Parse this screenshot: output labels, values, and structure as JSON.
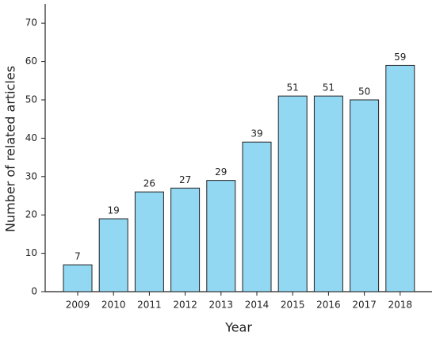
{
  "chart_data": {
    "type": "bar",
    "x_label": "Year",
    "y_label": "Number of related articles",
    "categories": [
      "2009",
      "2010",
      "2011",
      "2012",
      "2013",
      "2014",
      "2015",
      "2016",
      "2017",
      "2018"
    ],
    "values": [
      7,
      19,
      26,
      27,
      29,
      39,
      51,
      51,
      50,
      59
    ],
    "color": "#92d8f2",
    "ylim": [
      0,
      75
    ],
    "yticks": [
      0,
      10,
      20,
      30,
      40,
      50,
      60,
      70
    ]
  }
}
